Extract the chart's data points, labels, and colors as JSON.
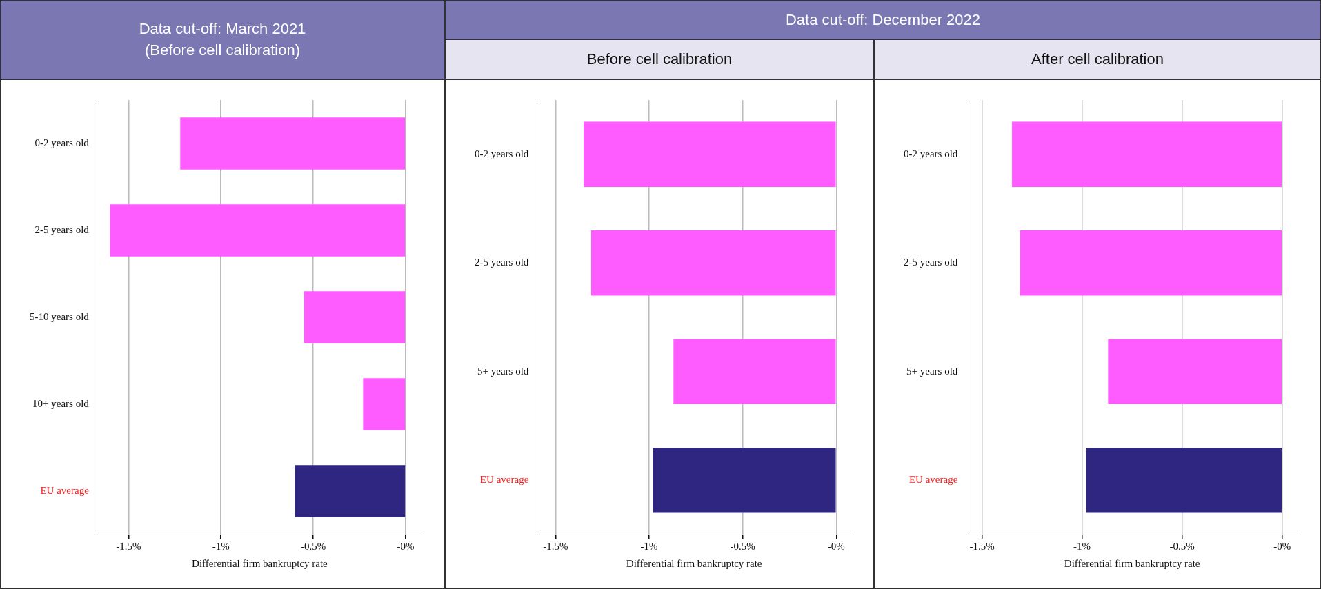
{
  "chart_data": [
    {
      "type": "bar",
      "orientation": "horizontal",
      "title": "Data cut-off: March 2021",
      "subtitle": "(Before cell calibration)",
      "xlabel": "Differential firm bankruptcy rate",
      "categories": [
        "0-2 years old",
        "2-5 years old",
        "5-10 years old",
        "10+ years old",
        "EU average"
      ],
      "values": [
        -1.22,
        -1.6,
        -0.55,
        -0.23,
        -0.6
      ],
      "colors": [
        "#ff5cff",
        "#ff5cff",
        "#ff5cff",
        "#ff5cff",
        "#2e2680"
      ],
      "xlim": [
        -1.67,
        0.09
      ],
      "xticks": [
        {
          "value": -1.5,
          "label": "-1.5%"
        },
        {
          "value": -1,
          "label": "-1%"
        },
        {
          "value": -0.5,
          "label": "-0.5%"
        },
        {
          "value": 0,
          "label": "-0%"
        }
      ],
      "grid": "x"
    },
    {
      "type": "bar",
      "orientation": "horizontal",
      "title": "Data cut-off: December 2022",
      "subtitle": "Before cell calibration",
      "xlabel": "Differential firm bankruptcy rate",
      "categories": [
        "0-2 years old",
        "2-5 years old",
        "5+ years old",
        "EU average"
      ],
      "values": [
        -1.35,
        -1.31,
        -0.87,
        -0.98
      ],
      "colors": [
        "#ff5cff",
        "#ff5cff",
        "#ff5cff",
        "#2e2680"
      ],
      "xlim": [
        -1.6,
        0.08
      ],
      "xticks": [
        {
          "value": -1.5,
          "label": "-1.5%"
        },
        {
          "value": -1,
          "label": "-1%"
        },
        {
          "value": -0.5,
          "label": "-0.5%"
        },
        {
          "value": 0,
          "label": "-0%"
        }
      ],
      "grid": "x"
    },
    {
      "type": "bar",
      "orientation": "horizontal",
      "subtitle": "After cell calibration",
      "xlabel": "Differential firm bankruptcy rate",
      "categories": [
        "0-2 years old",
        "2-5 years old",
        "5+ years old",
        "EU average"
      ],
      "values": [
        -1.35,
        -1.31,
        -0.87,
        -0.98
      ],
      "colors": [
        "#ff5cff",
        "#ff5cff",
        "#ff5cff",
        "#2e2680"
      ],
      "xlim": [
        -1.58,
        0.08
      ],
      "xticks": [
        {
          "value": -1.5,
          "label": "-1.5%"
        },
        {
          "value": -1,
          "label": "-1%"
        },
        {
          "value": -0.5,
          "label": "-0.5%"
        },
        {
          "value": 0,
          "label": "-0%"
        }
      ],
      "grid": "x"
    }
  ]
}
